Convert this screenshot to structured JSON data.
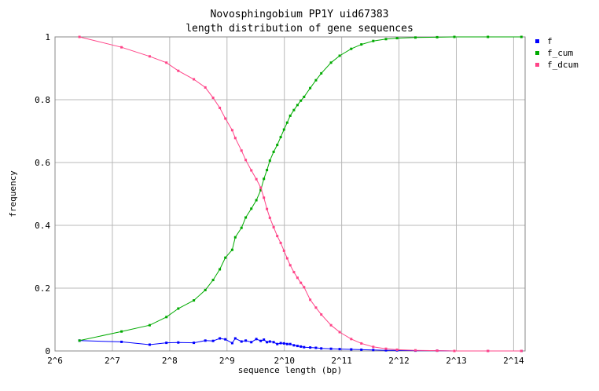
{
  "chart_data": {
    "type": "line",
    "title": [
      "Novosphingobium PP1Y uid67383",
      "length distribution of gene sequences"
    ],
    "xlabel": "sequence length (bp)",
    "ylabel": "frequency",
    "x_scale": "log2",
    "x_exp_range": [
      6,
      14.2
    ],
    "x_ticks": [
      "2^6",
      "2^7",
      "2^8",
      "2^9",
      "2^10",
      "2^11",
      "2^12",
      "2^13",
      "2^14"
    ],
    "ylim": [
      0,
      1
    ],
    "y_ticks": [
      "0",
      "0.2",
      "0.4",
      "0.6",
      "0.8",
      "1"
    ],
    "grid": true,
    "legend_position": "right",
    "series": [
      {
        "name": "f",
        "color": "#0000ff",
        "x": [
          86,
          143,
          201,
          246,
          284,
          343,
          394,
          433,
          469,
          502,
          545,
          566,
          610,
          642,
          687,
          730,
          770,
          800,
          830,
          860,
          900,
          940,
          980,
          1020,
          1060,
          1100,
          1150,
          1200,
          1250,
          1300,
          1400,
          1500,
          1600,
          1800,
          2000,
          2300,
          2600,
          3000,
          3500,
          4000,
          5000,
          6500,
          8000,
          12000,
          18000
        ],
        "values": [
          0.033,
          0.029,
          0.02,
          0.026,
          0.027,
          0.026,
          0.033,
          0.032,
          0.04,
          0.037,
          0.025,
          0.04,
          0.03,
          0.033,
          0.028,
          0.038,
          0.032,
          0.036,
          0.028,
          0.03,
          0.028,
          0.022,
          0.025,
          0.024,
          0.022,
          0.022,
          0.018,
          0.016,
          0.014,
          0.012,
          0.011,
          0.01,
          0.008,
          0.007,
          0.006,
          0.005,
          0.004,
          0.003,
          0.002,
          0.002,
          0.001,
          0.001,
          0.0,
          0.0,
          0.0
        ]
      },
      {
        "name": "f_cum",
        "color": "#00aa00",
        "x": [
          86,
          143,
          201,
          246,
          284,
          343,
          394,
          433,
          469,
          502,
          545,
          566,
          610,
          642,
          687,
          730,
          770,
          800,
          830,
          860,
          900,
          940,
          980,
          1020,
          1060,
          1100,
          1150,
          1200,
          1250,
          1300,
          1400,
          1500,
          1600,
          1800,
          2000,
          2300,
          2600,
          3000,
          3500,
          4000,
          5000,
          6500,
          8000,
          12000,
          18000
        ],
        "values": [
          0.033,
          0.062,
          0.082,
          0.108,
          0.135,
          0.161,
          0.194,
          0.226,
          0.26,
          0.297,
          0.322,
          0.362,
          0.392,
          0.425,
          0.453,
          0.48,
          0.512,
          0.548,
          0.576,
          0.606,
          0.634,
          0.656,
          0.681,
          0.705,
          0.727,
          0.749,
          0.767,
          0.783,
          0.797,
          0.809,
          0.837,
          0.862,
          0.884,
          0.918,
          0.94,
          0.962,
          0.976,
          0.987,
          0.993,
          0.996,
          0.998,
          0.999,
          1.0,
          1.0,
          1.0
        ]
      },
      {
        "name": "f_dcum",
        "color": "#ff4488",
        "x": [
          86,
          143,
          201,
          246,
          284,
          343,
          394,
          433,
          469,
          502,
          545,
          566,
          610,
          642,
          687,
          730,
          770,
          800,
          830,
          860,
          900,
          940,
          980,
          1020,
          1060,
          1100,
          1150,
          1200,
          1250,
          1300,
          1400,
          1500,
          1600,
          1800,
          2000,
          2300,
          2600,
          3000,
          3500,
          4000,
          5000,
          6500,
          8000,
          12000,
          18000
        ],
        "values": [
          1.0,
          0.967,
          0.938,
          0.918,
          0.892,
          0.865,
          0.839,
          0.806,
          0.774,
          0.74,
          0.703,
          0.678,
          0.638,
          0.608,
          0.575,
          0.547,
          0.52,
          0.488,
          0.452,
          0.424,
          0.394,
          0.366,
          0.344,
          0.319,
          0.295,
          0.273,
          0.251,
          0.233,
          0.217,
          0.203,
          0.163,
          0.138,
          0.116,
          0.082,
          0.06,
          0.038,
          0.024,
          0.013,
          0.007,
          0.004,
          0.002,
          0.001,
          0.0,
          0.0,
          0.0
        ]
      }
    ]
  }
}
